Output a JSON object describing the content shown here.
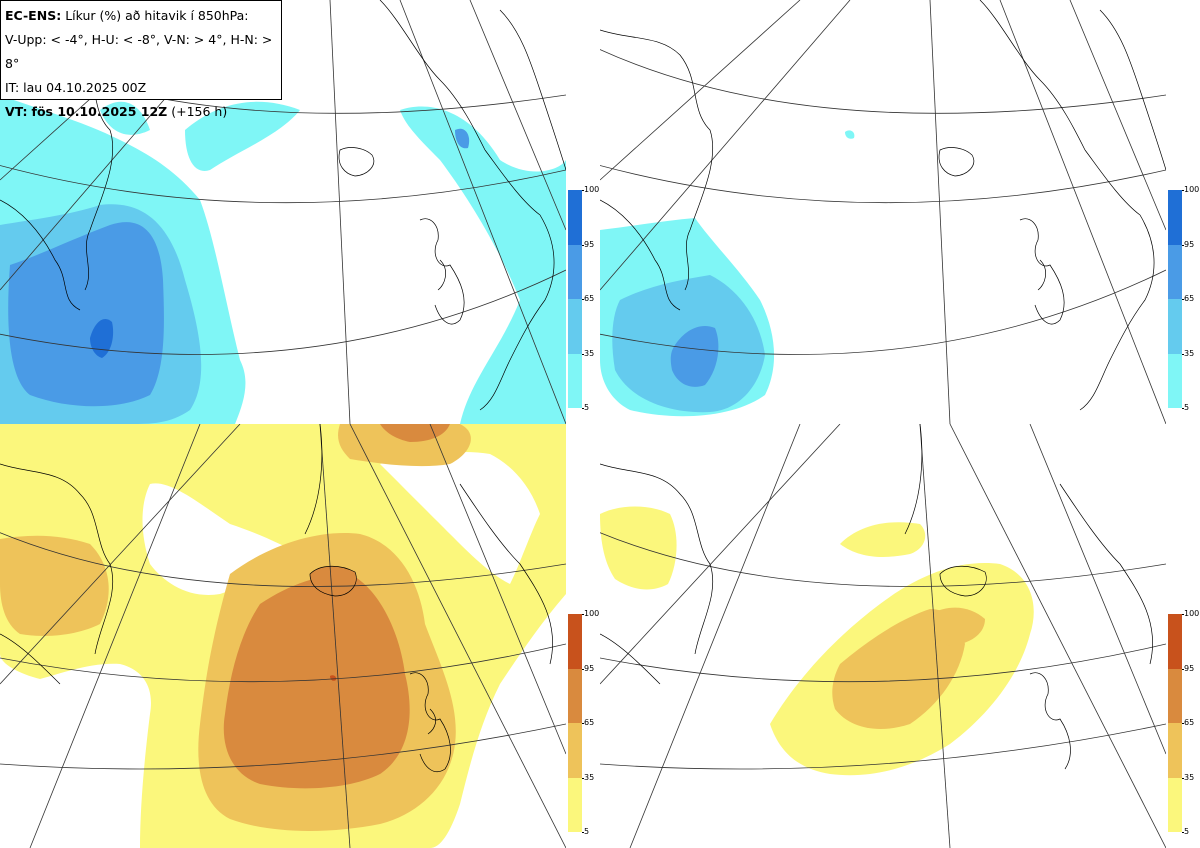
{
  "header": {
    "model_label": "EC-ENS:",
    "title_rest": "Líkur (%) að hitavik í 850hPa:",
    "thresholds": "V-Upp: < -4°, H-U: < -8°, V-N: > 4°, H-N: > 8°",
    "init_time": "IT: lau 04.10.2025 00Z",
    "valid_label": "VT:",
    "valid_time": "fös 10.10.2025 12Z",
    "lead_time": "(+156 h)"
  },
  "panels": [
    {
      "id": "V-Upp",
      "description": "cold anomaly < -4°",
      "palette": "blue"
    },
    {
      "id": "H-U",
      "description": "cold anomaly < -8°",
      "palette": "blue"
    },
    {
      "id": "V-N",
      "description": "warm anomaly > 4°",
      "palette": "orange"
    },
    {
      "id": "H-N",
      "description": "warm anomaly > 8°",
      "palette": "orange"
    }
  ],
  "colorbars": {
    "cold": {
      "ticks": [
        "100",
        "95",
        "65",
        "35",
        "5"
      ],
      "colors": [
        "#1f6fd6",
        "#4a9be6",
        "#64cbee",
        "#7ff6f6"
      ]
    },
    "warm": {
      "ticks": [
        "100",
        "95",
        "65",
        "35",
        "5"
      ],
      "colors": [
        "#c8521c",
        "#d98a3e",
        "#eec35a",
        "#fbf77c"
      ]
    }
  }
}
